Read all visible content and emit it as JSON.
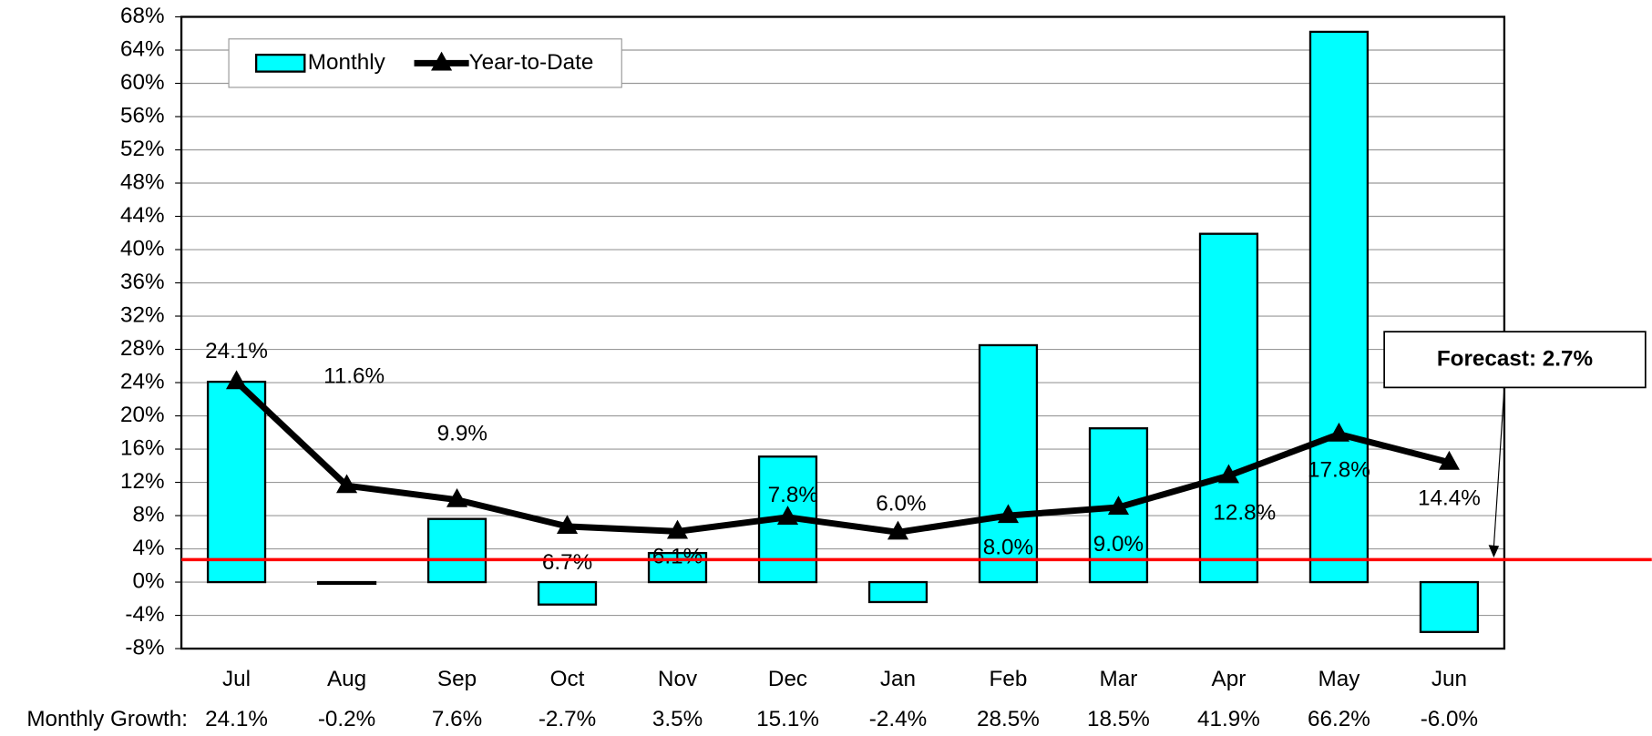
{
  "chart_data": {
    "type": "bar_line",
    "categories": [
      "Jul",
      "Aug",
      "Sep",
      "Oct",
      "Nov",
      "Dec",
      "Jan",
      "Feb",
      "Mar",
      "Apr",
      "May",
      "Jun"
    ],
    "series": [
      {
        "name": "Monthly",
        "type": "bar",
        "color": "#00ffff",
        "values": [
          24.1,
          -0.2,
          7.6,
          -2.7,
          3.5,
          15.1,
          -2.4,
          28.5,
          18.5,
          41.9,
          66.2,
          -6.0
        ],
        "value_labels": [
          "24.1%",
          "-0.2%",
          "7.6%",
          "-2.7%",
          "3.5%",
          "15.1%",
          "-2.4%",
          "28.5%",
          "18.5%",
          "41.9%",
          "66.2%",
          "-6.0%"
        ]
      },
      {
        "name": "Year-to-Date",
        "type": "line",
        "color": "#000000",
        "values": [
          24.1,
          11.6,
          9.9,
          6.7,
          6.1,
          7.8,
          6.0,
          8.0,
          9.0,
          12.8,
          17.8,
          14.4
        ],
        "value_labels": [
          "24.1%",
          "11.6%",
          "9.9%",
          "6.7%",
          "6.1%",
          "7.8%",
          "6.0%",
          "8.0%",
          "9.0%",
          "12.8%",
          "17.8%",
          "14.4%"
        ]
      }
    ],
    "table_row_label": "Monthly Growth:",
    "forecast": {
      "value": 2.7,
      "label": "Forecast: 2.7%",
      "color": "#ff0000"
    },
    "ylim": [
      -8,
      68
    ],
    "yticks": [
      {
        "value": -8,
        "label": "-8%"
      },
      {
        "value": -4,
        "label": "-4%"
      },
      {
        "value": 0,
        "label": "0%"
      },
      {
        "value": 4,
        "label": "4%"
      },
      {
        "value": 8,
        "label": "8%"
      },
      {
        "value": 12,
        "label": "12%"
      },
      {
        "value": 16,
        "label": "16%"
      },
      {
        "value": 20,
        "label": "20%"
      },
      {
        "value": 24,
        "label": "24%"
      },
      {
        "value": 28,
        "label": "28%"
      },
      {
        "value": 32,
        "label": "32%"
      },
      {
        "value": 36,
        "label": "36%"
      },
      {
        "value": 40,
        "label": "40%"
      },
      {
        "value": 44,
        "label": "44%"
      },
      {
        "value": 48,
        "label": "48%"
      },
      {
        "value": 52,
        "label": "52%"
      },
      {
        "value": 56,
        "label": "56%"
      },
      {
        "value": 60,
        "label": "60%"
      },
      {
        "value": 64,
        "label": "64%"
      },
      {
        "value": 68,
        "label": "68%"
      }
    ],
    "grid": true,
    "legend": "upper left"
  }
}
